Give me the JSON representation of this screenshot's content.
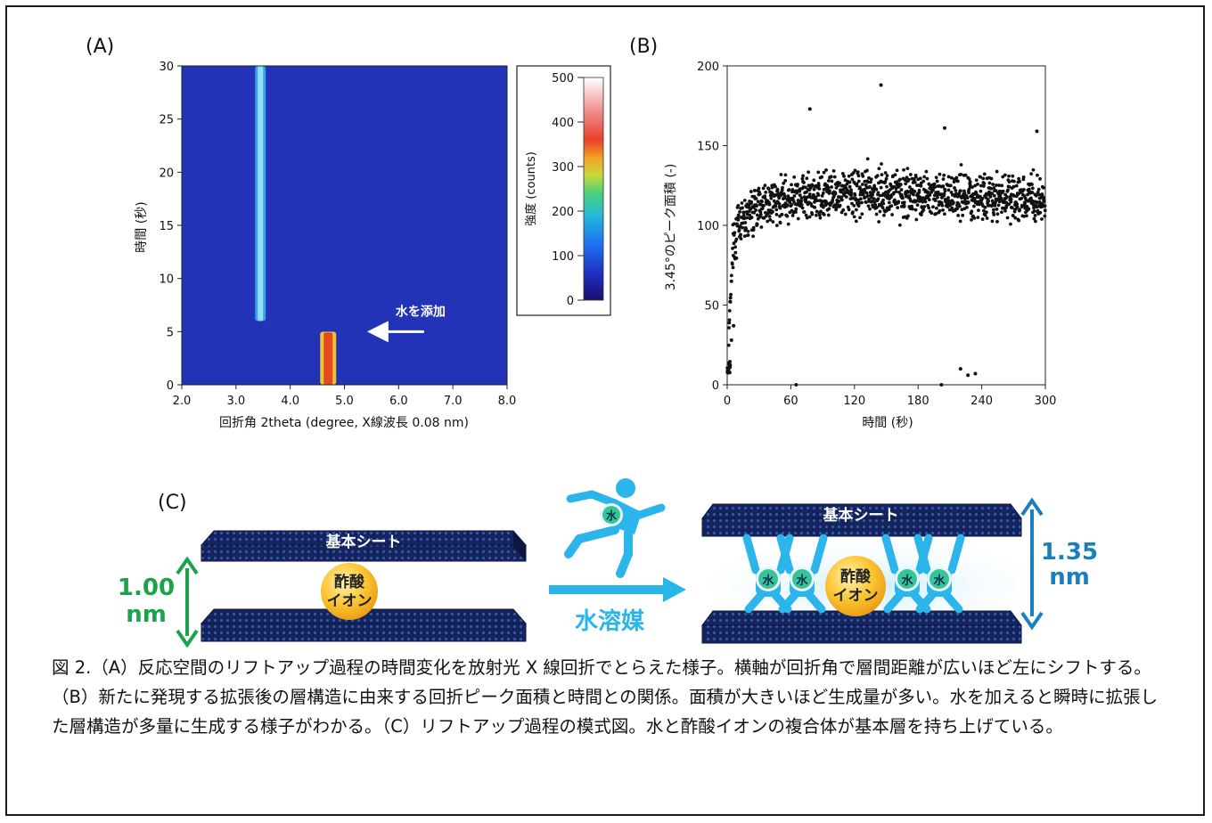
{
  "panel_a": {
    "label": "(A)",
    "ylabel": "時間 (秒)",
    "xlabel": "回折角 2theta (degree, X線波長 0.08 nm)",
    "annotation": "水を添加",
    "colorbar_label": "強度 (counts)",
    "colorbar_ticks": [
      "500",
      "400",
      "300",
      "200",
      "100",
      "0"
    ]
  },
  "panel_b": {
    "label": "(B)",
    "ylabel": "3.45°のピーク面積 (-)",
    "xlabel": "時間 (秒)"
  },
  "panel_c": {
    "label": "(C)",
    "sheet_label": "基本シート",
    "ion_line1": "酢酸",
    "ion_line2": "イオン",
    "water": "水",
    "solvent_label": "水溶媒",
    "gap_before_value": "1.00",
    "gap_before_unit": "nm",
    "gap_after_value": "1.35",
    "gap_after_unit": "nm",
    "color_green": "#1aa34a",
    "color_blue": "#1a7fc0",
    "color_cyan": "#26b6ea"
  },
  "caption": "図 2.（A）反応空間のリフトアップ過程の時間変化を放射光 X 線回折でとらえた様子。横軸が回折角で層間距離が広いほど左にシフトする。（B）新たに発現する拡張後の層構造に由来する回折ピーク面積と時間との関係。面積が大きいほど生成量が多い。水を加えると瞬時に拡張した層構造が多量に生成する様子がわかる。（C）リフトアップ過程の模式図。水と酢酸イオンの複合体が基本層を持ち上げている。",
  "chart_data": [
    {
      "type": "heatmap",
      "title": "",
      "xlabel": "回折角 2theta (degree, X線波長 0.08 nm)",
      "ylabel": "時間 (秒)",
      "xlim": [
        2.0,
        8.0
      ],
      "ylim": [
        0,
        30
      ],
      "x_ticks": [
        "2.0",
        "3.0",
        "4.0",
        "5.0",
        "6.0",
        "7.0",
        "8.0"
      ],
      "y_ticks": [
        "0",
        "5",
        "10",
        "15",
        "20",
        "25",
        "30"
      ],
      "colorbar": {
        "label": "強度 (counts)",
        "range": [
          0,
          500
        ],
        "ticks": [
          0,
          100,
          200,
          300,
          400,
          500
        ]
      },
      "features": [
        {
          "x": 3.45,
          "t_start": 6,
          "t_end": 30,
          "intensity": 180
        },
        {
          "x": 4.7,
          "t_start": 0,
          "t_end": 5,
          "intensity": 330
        }
      ],
      "background_intensity": 40,
      "annotation": {
        "text": "水を添加",
        "x": 6.6,
        "y": 5
      }
    },
    {
      "type": "scatter",
      "title": "",
      "xlabel": "時間 (秒)",
      "ylabel": "3.45°のピーク面積 (-)",
      "xlim": [
        0,
        300
      ],
      "ylim": [
        0,
        200
      ],
      "x_ticks": [
        "0",
        "60",
        "120",
        "180",
        "240",
        "300"
      ],
      "y_ticks": [
        "0",
        "50",
        "100",
        "150",
        "200"
      ],
      "trend": {
        "x": [
          0,
          5,
          10,
          20,
          40,
          60,
          120,
          180,
          240,
          300
        ],
        "y": [
          10,
          85,
          100,
          110,
          115,
          118,
          120,
          120,
          118,
          116
        ]
      },
      "spread": 10,
      "outliers": [
        {
          "x": 78,
          "y": 173
        },
        {
          "x": 145,
          "y": 188
        },
        {
          "x": 205,
          "y": 161
        },
        {
          "x": 292,
          "y": 159
        },
        {
          "x": 220,
          "y": 10
        },
        {
          "x": 227,
          "y": 6
        },
        {
          "x": 234,
          "y": 7
        },
        {
          "x": 202,
          "y": 0
        },
        {
          "x": 65,
          "y": 0
        },
        {
          "x": 3,
          "y": 52
        },
        {
          "x": 4,
          "y": 28
        },
        {
          "x": 6,
          "y": 37
        }
      ]
    }
  ]
}
